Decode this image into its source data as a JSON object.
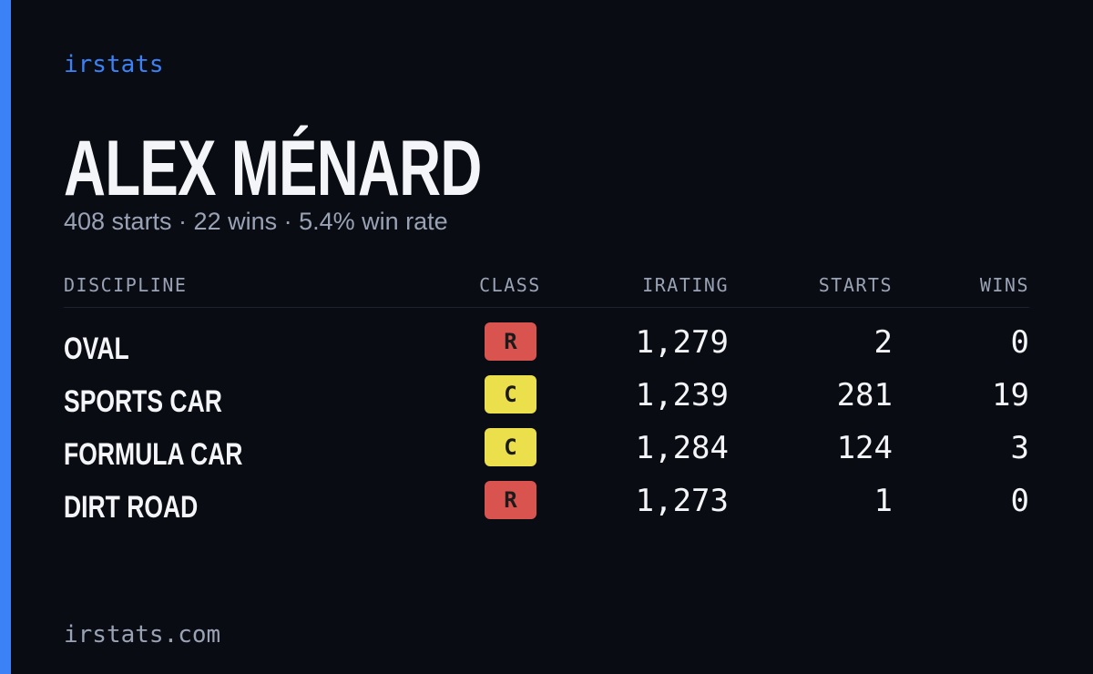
{
  "brand": "irstats",
  "name": "ALEX MÉNARD",
  "summary": "408 starts · 22 wins · 5.4% win rate",
  "table": {
    "headers": [
      "DISCIPLINE",
      "CLASS",
      "IRATING",
      "STARTS",
      "WINS"
    ],
    "rows": [
      {
        "discipline": "OVAL",
        "class": "R",
        "class_color": "#d9534f",
        "irating": "1,279",
        "starts": "2",
        "wins": "0"
      },
      {
        "discipline": "SPORTS CAR",
        "class": "C",
        "class_color": "#ebe04b",
        "irating": "1,239",
        "starts": "281",
        "wins": "19"
      },
      {
        "discipline": "FORMULA CAR",
        "class": "C",
        "class_color": "#ebe04b",
        "irating": "1,284",
        "starts": "124",
        "wins": "3"
      },
      {
        "discipline": "DIRT ROAD",
        "class": "R",
        "class_color": "#d9534f",
        "irating": "1,273",
        "starts": "1",
        "wins": "0"
      }
    ]
  },
  "footer": "irstats.com"
}
